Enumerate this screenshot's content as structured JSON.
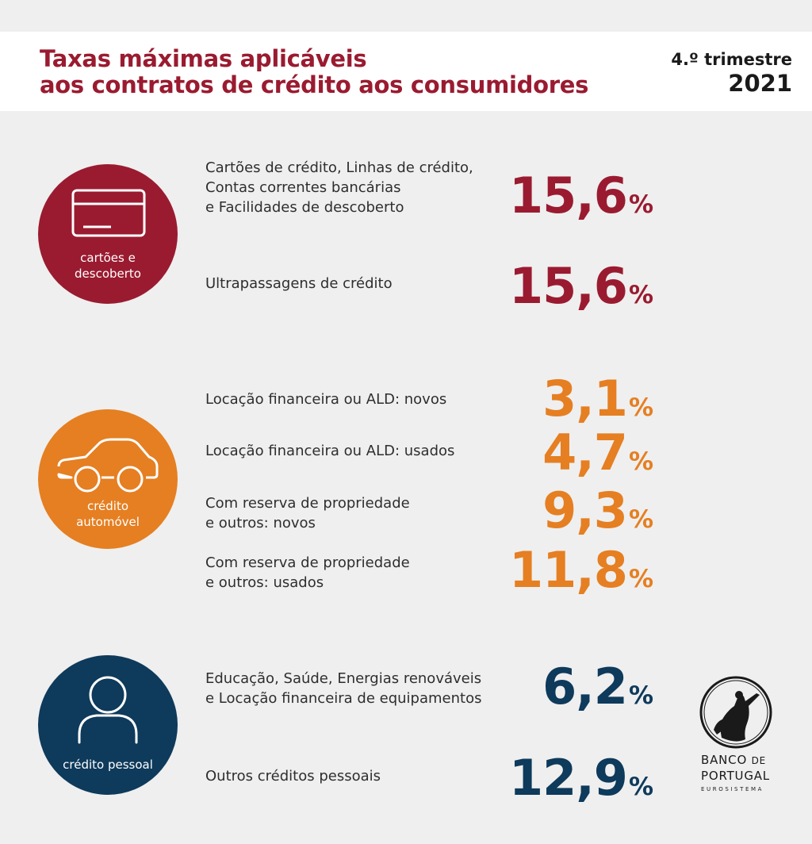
{
  "header": {
    "title_line1": "Taxas máximas aplicáveis",
    "title_line2": "aos contratos de crédito aos consumidores",
    "quarter": "4.º trimestre",
    "year": "2021"
  },
  "colors": {
    "cards": "#9a1b30",
    "auto": "#e57f22",
    "personal": "#0e3a5b",
    "background": "#efefef"
  },
  "sections": {
    "cards": {
      "icon": "credit-card-icon",
      "label": "cartões e\ndescoberto",
      "items": [
        {
          "label": "Cartões de crédito, Linhas de crédito,\nContas correntes bancárias\ne Facilidades de descoberto",
          "rate": "15,6",
          "unit": "%"
        },
        {
          "label": "Ultrapassagens de crédito",
          "rate": "15,6",
          "unit": "%"
        }
      ]
    },
    "auto": {
      "icon": "car-icon",
      "label": "crédito\nautomóvel",
      "items": [
        {
          "label": "Locação financeira ou ALD: novos",
          "rate": "3,1",
          "unit": "%"
        },
        {
          "label": "Locação financeira ou ALD: usados",
          "rate": "4,7",
          "unit": "%"
        },
        {
          "label": "Com reserva de propriedade\ne outros: novos",
          "rate": "9,3",
          "unit": "%"
        },
        {
          "label": "Com reserva de propriedade\ne outros: usados",
          "rate": "11,8",
          "unit": "%"
        }
      ]
    },
    "personal": {
      "icon": "person-icon",
      "label": "crédito pessoal",
      "items": [
        {
          "label": "Educação, Saúde, Energias renováveis\ne Locação financeira de equipamentos",
          "rate": "6,2",
          "unit": "%"
        },
        {
          "label": "Outros créditos pessoais",
          "rate": "12,9",
          "unit": "%"
        }
      ]
    }
  },
  "logo": {
    "line1_main": "BANCO",
    "line1_small": "DE",
    "line2": "PORTUGAL",
    "line3": "EUROSISTEMA"
  }
}
